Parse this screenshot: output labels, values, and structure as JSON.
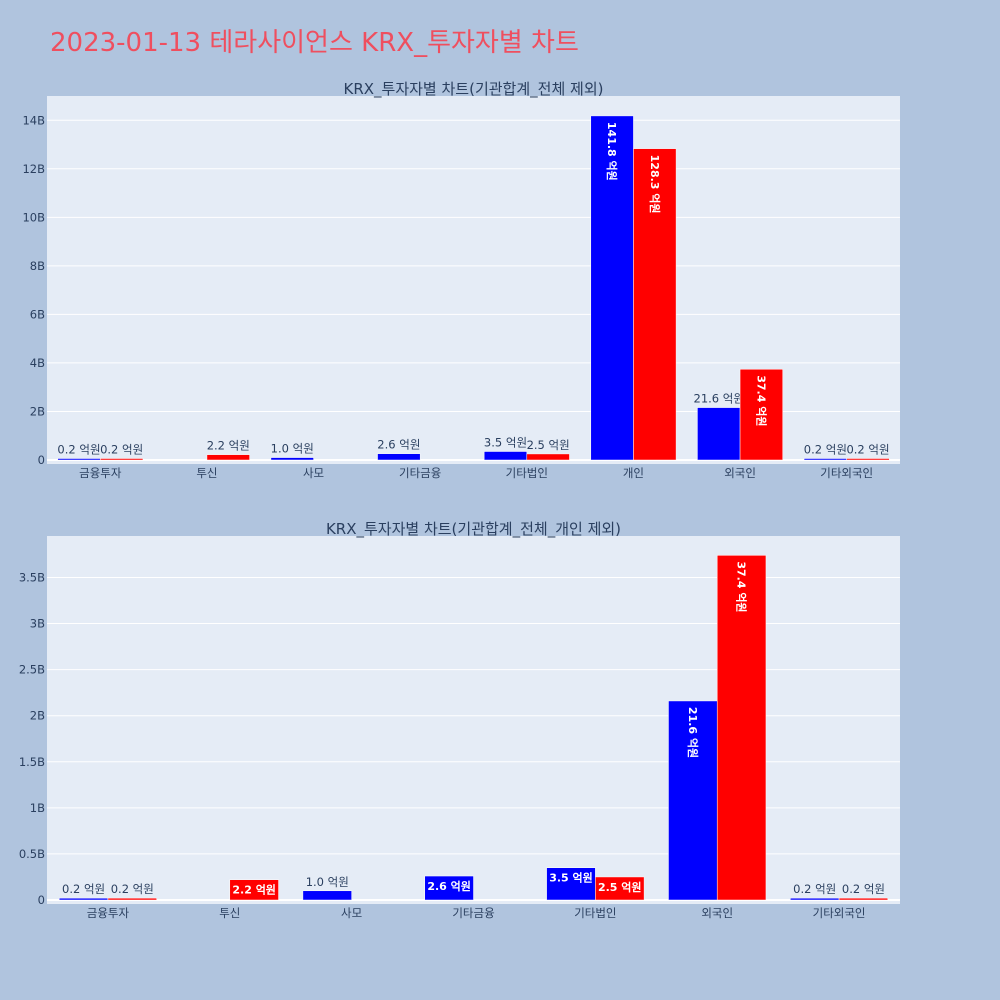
{
  "page_title": "2023-01-13 테라사이언스 KRX_투자자별 차트",
  "colors": {
    "buy": "#0000ff",
    "sell": "#ff0000",
    "title": "#ef4f5f",
    "plot_bg": "#e5ecf6",
    "paper_bg": "#b0c4de"
  },
  "chart_data": [
    {
      "type": "bar",
      "title": "KRX_투자자별 차트(기관합계_전체 제외)",
      "categories": [
        "금융투자",
        "투신",
        "사모",
        "기타금융",
        "기타법인",
        "개인",
        "외국인",
        "기타외국인"
      ],
      "series": [
        {
          "values": [
            20000000,
            0,
            100000000,
            260000000,
            350000000,
            14180000000,
            2160000000,
            20000000
          ],
          "labels": [
            "0.2 억원",
            "",
            "1.0 억원",
            "2.6 억원",
            "3.5 억원",
            "141.8 억원",
            "21.6 억원",
            "0.2 억원"
          ]
        },
        {
          "values": [
            20000000,
            220000000,
            0,
            0,
            250000000,
            12830000000,
            3740000000,
            20000000
          ],
          "labels": [
            "0.2 억원",
            "2.2 억원",
            "",
            "",
            "2.5 억원",
            "128.3 억원",
            "37.4 억원",
            "0.2 억원"
          ]
        }
      ],
      "ylim": [
        0,
        15000000000
      ],
      "yticks": [
        0,
        2000000000,
        4000000000,
        6000000000,
        8000000000,
        10000000000,
        12000000000,
        14000000000
      ],
      "ytick_labels": [
        "0",
        "2B",
        "4B",
        "6B",
        "8B",
        "10B",
        "12B",
        "14B"
      ]
    },
    {
      "type": "bar",
      "title": "KRX_투자자별 차트(기관합계_전체_개인 제외)",
      "categories": [
        "금융투자",
        "투신",
        "사모",
        "기타금융",
        "기타법인",
        "외국인",
        "기타외국인"
      ],
      "series": [
        {
          "values": [
            20000000,
            0,
            100000000,
            260000000,
            350000000,
            2160000000,
            20000000
          ],
          "labels": [
            "0.2 억원",
            "",
            "1.0 억원",
            "2.6 억원",
            "3.5 억원",
            "21.6 억원",
            "0.2 억원"
          ]
        },
        {
          "values": [
            20000000,
            220000000,
            0,
            0,
            250000000,
            3740000000,
            20000000
          ],
          "labels": [
            "0.2 억원",
            "2.2 억원",
            "",
            "",
            "2.5 억원",
            "37.4 억원",
            "0.2 억원"
          ]
        }
      ],
      "ylim": [
        0,
        3950000000
      ],
      "yticks": [
        0,
        500000000,
        1000000000,
        1500000000,
        2000000000,
        2500000000,
        3000000000,
        3500000000
      ],
      "ytick_labels": [
        "0",
        "0.5B",
        "1B",
        "1.5B",
        "2B",
        "2.5B",
        "3B",
        "3.5B"
      ]
    }
  ]
}
